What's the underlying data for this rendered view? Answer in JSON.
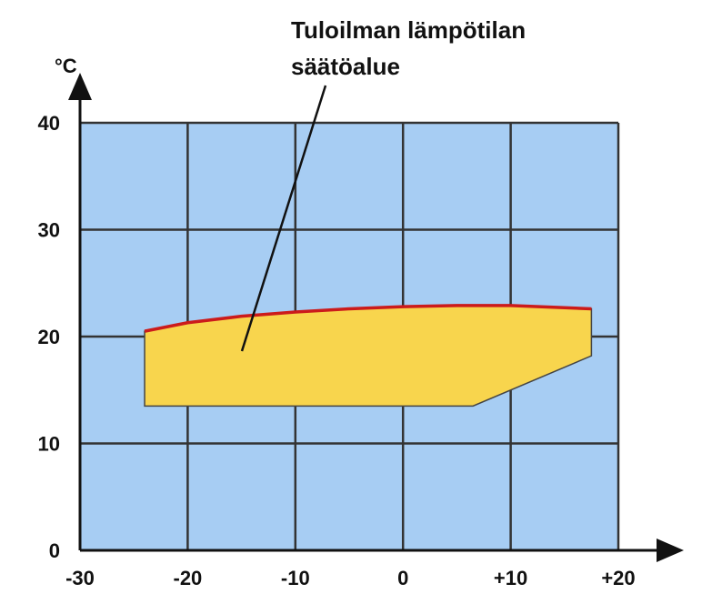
{
  "chart_data": {
    "type": "area",
    "title": "",
    "xlabel": "",
    "ylabel": "°C",
    "xlim": [
      -30,
      20
    ],
    "ylim": [
      0,
      40
    ],
    "x_ticks": [
      -30,
      -20,
      -10,
      0,
      10,
      20
    ],
    "x_tick_labels": [
      "-30",
      "-20",
      "-10",
      "0",
      "+10",
      "+20"
    ],
    "y_ticks": [
      0,
      10,
      20,
      30,
      40
    ],
    "y_tick_labels": [
      "0",
      "10",
      "20",
      "30",
      "40"
    ],
    "grid": true,
    "legend": "none",
    "region": {
      "upper": {
        "x": [
          -24,
          -20,
          -15,
          -10,
          -5,
          0,
          5,
          10,
          15,
          17.5
        ],
        "y": [
          20.5,
          21.3,
          21.9,
          22.3,
          22.6,
          22.8,
          22.9,
          22.9,
          22.7,
          22.6
        ]
      },
      "lower": {
        "x": [
          -24,
          6.5,
          17.5
        ],
        "y": [
          13.5,
          13.5,
          18.2
        ]
      }
    },
    "annotation": {
      "lines": [
        "Tuloilman lämpötilan",
        "säätöalue"
      ]
    },
    "colors": {
      "plot_bg": "#a7cdf3",
      "region_fill": "#f8d54d",
      "upper_edge": "#cc1b1b",
      "grid": "#333333",
      "axis": "#111111"
    }
  }
}
